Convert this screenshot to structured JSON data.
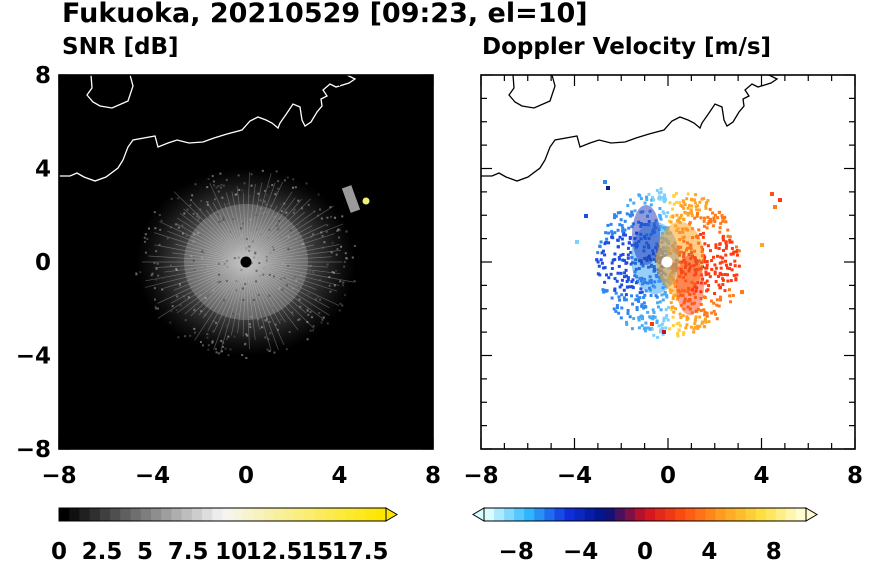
{
  "figure": {
    "title": "Fukuoka, 20210529 [09:23, el=10]"
  },
  "chart_data": [
    {
      "type": "heatmap",
      "title": "SNR [dB]",
      "xlim": [
        -8,
        8
      ],
      "ylim": [
        -8,
        8
      ],
      "xticks": [
        "−8",
        "−4",
        "0",
        "4",
        "8"
      ],
      "yticks": [
        "8",
        "4",
        "0",
        "−4",
        "−8"
      ],
      "xticks_values": [
        -8,
        -4,
        0,
        4,
        8
      ],
      "yticks_values": [
        8,
        4,
        0,
        -4,
        -8
      ],
      "background": "#000000",
      "colorbar": {
        "ticks": [
          "0",
          "2.5",
          "5",
          "7.5",
          "10",
          "12.5",
          "15",
          "17.5"
        ],
        "tick_values": [
          0,
          2.5,
          5,
          7.5,
          10,
          12.5,
          15,
          17.5
        ],
        "range": [
          0,
          19
        ],
        "extend": "max",
        "colors": [
          "#000000",
          "#f5f5f5",
          "#ffe600"
        ]
      }
    },
    {
      "type": "heatmap",
      "title": "Doppler Velocity [m/s]",
      "xlim": [
        -8,
        8
      ],
      "ylim": [
        -8,
        8
      ],
      "xticks": [
        "−8",
        "−4",
        "0",
        "4",
        "8"
      ],
      "yticks": [],
      "xticks_values": [
        -8,
        -4,
        0,
        4,
        8
      ],
      "background": "#ffffff",
      "colorbar": {
        "ticks": [
          "−8",
          "−4",
          "0",
          "4",
          "8"
        ],
        "tick_values": [
          -8,
          -4,
          0,
          4,
          8
        ],
        "range": [
          -10,
          10
        ],
        "extend": "both",
        "colors": [
          "#d8fcff",
          "#30b8ff",
          "#1030e0",
          "#001080",
          "#d01020",
          "#ff5010",
          "#ffa020",
          "#ffe040",
          "#fffcd0"
        ]
      }
    }
  ]
}
